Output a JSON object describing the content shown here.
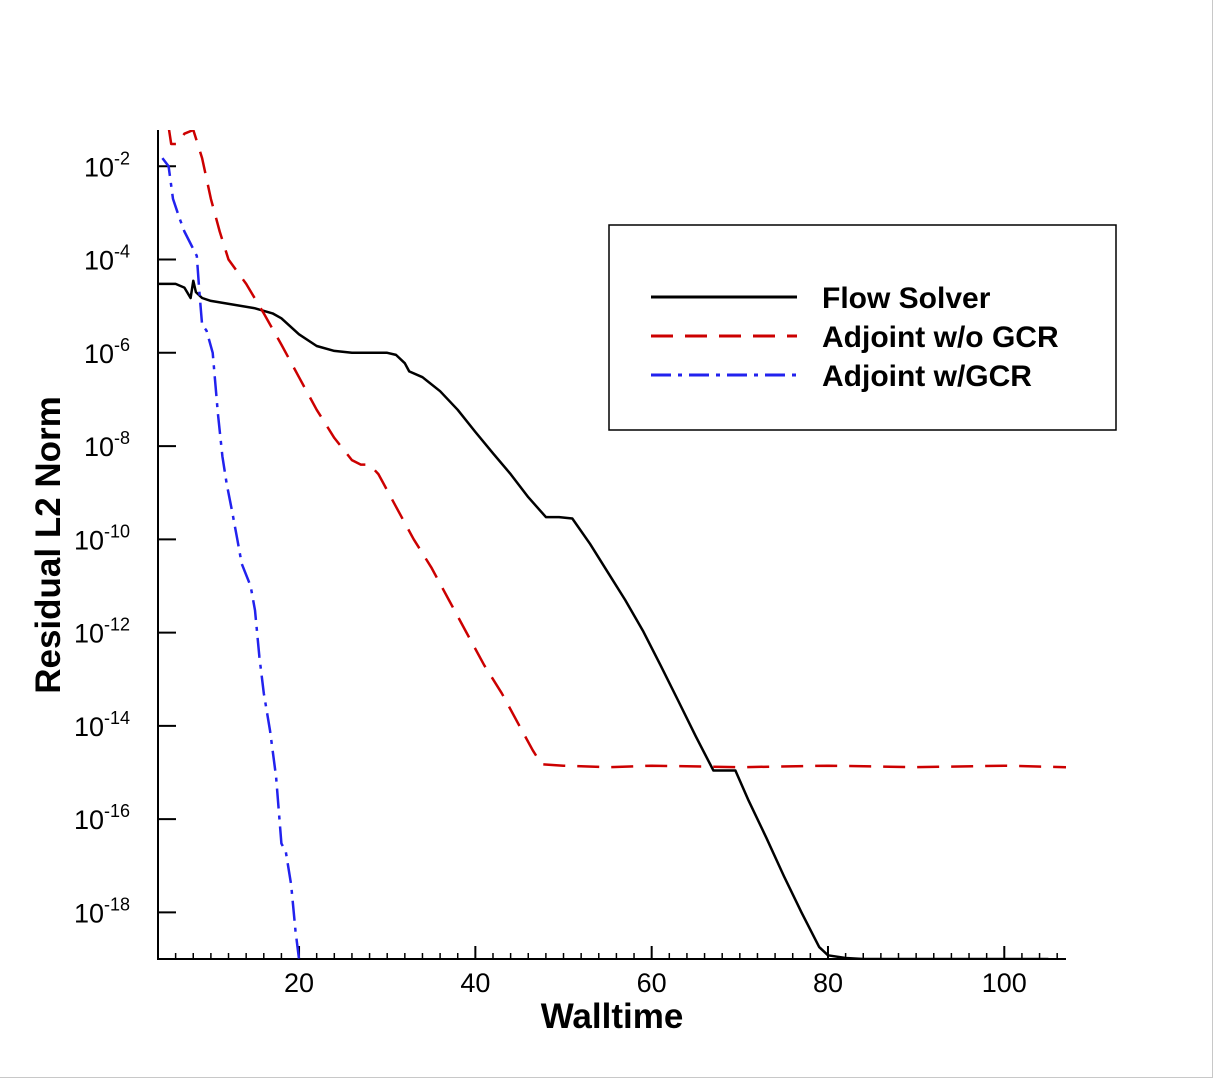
{
  "chart_data": {
    "type": "line",
    "title": "",
    "xlabel": "Walltime",
    "ylabel": "Residual L2 Norm",
    "xlim": [
      4,
      107
    ],
    "ylim": [
      1e-19,
      0.06
    ],
    "y_scale": "log",
    "grid": false,
    "legend_position": "top-right",
    "x_ticks": [
      {
        "value": 20,
        "label": "20"
      },
      {
        "value": 40,
        "label": "40"
      },
      {
        "value": 60,
        "label": "60"
      },
      {
        "value": 80,
        "label": "80"
      },
      {
        "value": 100,
        "label": "100"
      }
    ],
    "y_ticks": [
      {
        "exp": -2,
        "base": "10",
        "sup": "-2"
      },
      {
        "exp": -4,
        "base": "10",
        "sup": "-4"
      },
      {
        "exp": -6,
        "base": "10",
        "sup": "-6"
      },
      {
        "exp": -8,
        "base": "10",
        "sup": "-8"
      },
      {
        "exp": -10,
        "base": "10",
        "sup": "-10"
      },
      {
        "exp": -12,
        "base": "10",
        "sup": "-12"
      },
      {
        "exp": -14,
        "base": "10",
        "sup": "-14"
      },
      {
        "exp": -16,
        "base": "10",
        "sup": "-16"
      },
      {
        "exp": -18,
        "base": "10",
        "sup": "-18"
      }
    ],
    "series": [
      {
        "name": "Flow Solver",
        "color": "#000000",
        "dash": "solid",
        "x": [
          4.1,
          6,
          7,
          7.7,
          8,
          8.3,
          9,
          10,
          15,
          17,
          18,
          20,
          22,
          24,
          26,
          29,
          30,
          31,
          32,
          32.5,
          34,
          36,
          38,
          40,
          42,
          44,
          46,
          48,
          49.5,
          51,
          53,
          55,
          57,
          59,
          61,
          63,
          65,
          67,
          69.5,
          71,
          73,
          75,
          77,
          79,
          80,
          82,
          84,
          90,
          100,
          105
        ],
        "y": [
          3e-05,
          3e-05,
          2.5e-05,
          1.5e-05,
          3.5e-05,
          2e-05,
          1.5e-05,
          1.3e-05,
          9e-06,
          7e-06,
          5.5e-06,
          2.5e-06,
          1.4e-06,
          1.1e-06,
          1e-06,
          1e-06,
          1e-06,
          9e-07,
          6e-07,
          4e-07,
          3e-07,
          1.5e-07,
          6e-08,
          2e-08,
          7e-09,
          2.5e-09,
          8e-10,
          3e-10,
          3e-10,
          2.8e-10,
          8e-11,
          2e-11,
          5e-12,
          1.1e-12,
          2e-13,
          3.5e-14,
          6e-15,
          1.1e-15,
          1.1e-15,
          2.5e-16,
          4e-17,
          6e-18,
          1e-18,
          1.8e-19,
          1.2e-19,
          1.05e-19,
          1e-19,
          1e-19,
          1e-19,
          1e-19
        ]
      },
      {
        "name": "Adjoint w/o GCR",
        "color": "#cc0000",
        "dash": "dashed",
        "x": [
          5.2,
          5.5,
          6.1,
          7,
          8,
          9,
          10,
          11,
          12,
          14,
          16,
          18,
          20,
          22,
          24,
          26,
          27,
          28,
          29,
          31,
          33,
          35,
          37,
          39,
          41,
          43,
          45,
          46.5,
          47.5,
          50,
          55,
          60,
          70,
          80,
          90,
          100,
          107
        ],
        "y": [
          0.07,
          0.03,
          0.03,
          0.05,
          0.06,
          0.015,
          0.002,
          0.0004,
          0.0001,
          3e-05,
          7e-06,
          1.5e-06,
          3e-07,
          6e-08,
          1.5e-08,
          5e-09,
          4e-09,
          4e-09,
          2.5e-09,
          5e-10,
          1e-10,
          2.5e-11,
          5e-12,
          1e-12,
          2e-13,
          5e-14,
          1e-14,
          3e-15,
          1.5e-15,
          1.4e-15,
          1.3e-15,
          1.4e-15,
          1.3e-15,
          1.4e-15,
          1.3e-15,
          1.4e-15,
          1.3e-15
        ]
      },
      {
        "name": "Adjoint w/GCR",
        "color": "#2222ee",
        "dash": "dashdot",
        "x": [
          4.5,
          5.2,
          5.7,
          6.4,
          7,
          7.8,
          8.4,
          8.7,
          9,
          9.5,
          10.2,
          10.8,
          11.3,
          11.8,
          12.4,
          13,
          13.5,
          14.5,
          15,
          15.5,
          16,
          16.7,
          17.4,
          18,
          18.5,
          19.1,
          19.6,
          20
        ],
        "y": [
          0.015,
          0.01,
          0.002,
          0.0008,
          0.0004,
          0.0002,
          0.00012,
          2e-05,
          4e-06,
          3e-06,
          1e-06,
          5e-08,
          6e-09,
          1.5e-09,
          4e-10,
          1e-10,
          3e-11,
          1e-11,
          3e-12,
          3e-13,
          5e-14,
          8e-15,
          8e-16,
          3e-17,
          2e-17,
          4e-18,
          4e-19,
          1e-19
        ]
      }
    ]
  }
}
